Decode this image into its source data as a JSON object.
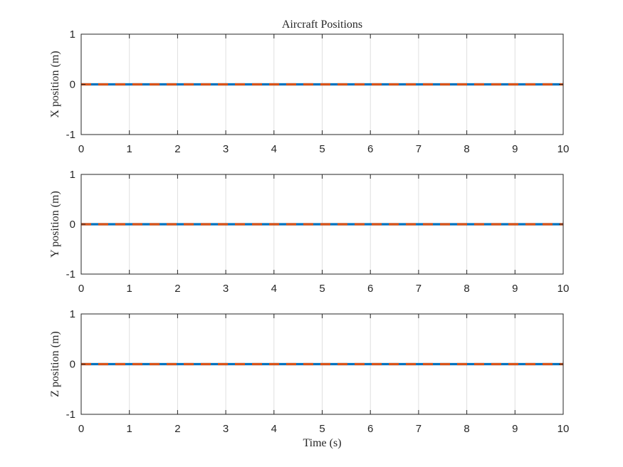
{
  "chart_data": [
    {
      "type": "line",
      "title": "Aircraft Positions",
      "xlabel": "",
      "ylabel": "X position (m)",
      "xlim": [
        0,
        10
      ],
      "ylim": [
        -1,
        1
      ],
      "xticks": [
        "0",
        "1",
        "2",
        "3",
        "4",
        "5",
        "6",
        "7",
        "8",
        "9",
        "10"
      ],
      "yticks": [
        "-1",
        "0",
        "1"
      ],
      "grid": "vertical",
      "x": [
        0,
        10
      ],
      "series": [
        {
          "values": [
            0,
            0
          ],
          "color": "#0072BD",
          "style": "solid"
        },
        {
          "values": [
            0,
            0
          ],
          "color": "#D95319",
          "style": "dashed"
        }
      ]
    },
    {
      "type": "line",
      "title": "",
      "xlabel": "",
      "ylabel": "Y position (m)",
      "xlim": [
        0,
        10
      ],
      "ylim": [
        -1,
        1
      ],
      "xticks": [
        "0",
        "1",
        "2",
        "3",
        "4",
        "5",
        "6",
        "7",
        "8",
        "9",
        "10"
      ],
      "yticks": [
        "-1",
        "0",
        "1"
      ],
      "grid": "vertical",
      "x": [
        0,
        10
      ],
      "series": [
        {
          "values": [
            0,
            0
          ],
          "color": "#0072BD",
          "style": "solid"
        },
        {
          "values": [
            0,
            0
          ],
          "color": "#D95319",
          "style": "dashed"
        }
      ]
    },
    {
      "type": "line",
      "title": "",
      "xlabel": "Time (s)",
      "ylabel": "Z position (m)",
      "xlim": [
        0,
        10
      ],
      "ylim": [
        -1,
        1
      ],
      "xticks": [
        "0",
        "1",
        "2",
        "3",
        "4",
        "5",
        "6",
        "7",
        "8",
        "9",
        "10"
      ],
      "yticks": [
        "-1",
        "0",
        "1"
      ],
      "grid": "vertical",
      "x": [
        0,
        10
      ],
      "series": [
        {
          "values": [
            0,
            0
          ],
          "color": "#0072BD",
          "style": "solid"
        },
        {
          "values": [
            0,
            0
          ],
          "color": "#D95319",
          "style": "dashed"
        }
      ]
    }
  ]
}
